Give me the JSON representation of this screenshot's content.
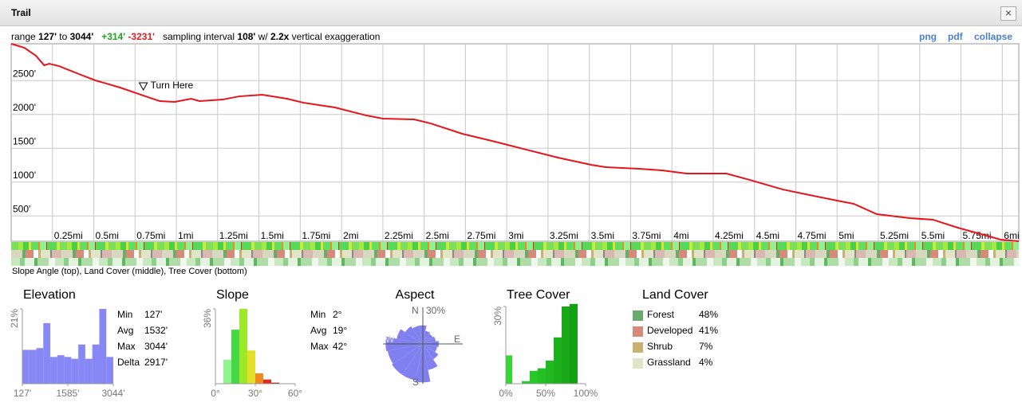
{
  "window": {
    "title": "Trail",
    "close": "×"
  },
  "summary": {
    "range_label": "range",
    "min": "127'",
    "to": "to",
    "max": "3044'",
    "gain": "+314'",
    "loss": "-3231'",
    "sampling_label": "sampling interval",
    "interval": "108'",
    "with": "w/",
    "exaggeration": "2.2x",
    "exaggeration_label": "vertical exaggeration"
  },
  "links": [
    "png",
    "pdf",
    "collapse"
  ],
  "profile": {
    "type": "line",
    "color": "#e8141b",
    "x": [
      0,
      0.08,
      0.15,
      0.2,
      0.23,
      0.29,
      0.41,
      0.51,
      0.66,
      0.8,
      0.9,
      0.99,
      1.09,
      1.14,
      1.28,
      1.38,
      1.52,
      1.67,
      1.77,
      1.96,
      2.15,
      2.25,
      2.44,
      2.54,
      2.73,
      2.93,
      3.12,
      3.31,
      3.51,
      3.6,
      3.8,
      3.94,
      4.09,
      4.23,
      4.33,
      4.47,
      4.67,
      4.81,
      5.0,
      5.1,
      5.24,
      5.44,
      5.58,
      5.73,
      5.87,
      5.99,
      6.1
    ],
    "values": [
      3044,
      2985,
      2867,
      2726,
      2750,
      2714,
      2597,
      2503,
      2397,
      2279,
      2197,
      2185,
      2232,
      2197,
      2220,
      2267,
      2291,
      2232,
      2173,
      2103,
      1985,
      1938,
      1926,
      1867,
      1715,
      1597,
      1479,
      1362,
      1256,
      1221,
      1197,
      1174,
      1127,
      1127,
      1127,
      1033,
      892,
      821,
      727,
      680,
      527,
      468,
      445,
      327,
      233,
      151,
      127
    ],
    "xlim": [
      0,
      6.1
    ],
    "ylim": [
      127,
      3044
    ],
    "yticks": [
      {
        "value": 500,
        "label": "500'"
      },
      {
        "value": 1000,
        "label": "1000'"
      },
      {
        "value": 1500,
        "label": "1500'"
      },
      {
        "value": 2000,
        "label": "2000'"
      },
      {
        "value": 2500,
        "label": "2500'"
      }
    ],
    "xticks": [
      {
        "value": 0.25,
        "label": "0.25mi"
      },
      {
        "value": 0.5,
        "label": "0.5mi"
      },
      {
        "value": 0.75,
        "label": "0.75mi"
      },
      {
        "value": 1,
        "label": "1mi"
      },
      {
        "value": 1.25,
        "label": "1.25mi"
      },
      {
        "value": 1.5,
        "label": "1.5mi"
      },
      {
        "value": 1.75,
        "label": "1.75mi"
      },
      {
        "value": 2,
        "label": "2mi"
      },
      {
        "value": 2.25,
        "label": "2.25mi"
      },
      {
        "value": 2.5,
        "label": "2.5mi"
      },
      {
        "value": 2.75,
        "label": "2.75mi"
      },
      {
        "value": 3,
        "label": "3mi"
      },
      {
        "value": 3.25,
        "label": "3.25mi"
      },
      {
        "value": 3.5,
        "label": "3.5mi"
      },
      {
        "value": 3.75,
        "label": "3.75mi"
      },
      {
        "value": 4,
        "label": "4mi"
      },
      {
        "value": 4.25,
        "label": "4.25mi"
      },
      {
        "value": 4.5,
        "label": "4.5mi"
      },
      {
        "value": 4.75,
        "label": "4.75mi"
      },
      {
        "value": 5,
        "label": "5mi"
      },
      {
        "value": 5.25,
        "label": "5.25mi"
      },
      {
        "value": 5.5,
        "label": "5.5mi"
      },
      {
        "value": 5.75,
        "label": "5.75mi"
      },
      {
        "value": 6,
        "label": "6mi"
      }
    ],
    "annotation": {
      "text": "Turn Here",
      "x": 0.8,
      "y": 2420
    }
  },
  "strip_caption": "Slope Angle (top), Land Cover (middle), Tree Cover (bottom)",
  "panels": {
    "elevation": {
      "title": "Elevation",
      "type": "histogram",
      "color": "#8787f5",
      "bins": [
        127,
        351.4,
        575.8,
        800.2,
        1024.6,
        1249,
        1473.4,
        1697.8,
        1922.2,
        2146.6,
        2371,
        2595.4,
        2819.8,
        3044
      ],
      "counts": [
        9.5,
        9.5,
        10,
        17,
        7.5,
        8,
        7.5,
        7,
        11,
        7,
        11,
        21,
        7.5
      ],
      "xlim": [
        127,
        3044
      ],
      "ylim": [
        0,
        21
      ],
      "yticks": [
        {
          "value": 21,
          "label": "21%"
        }
      ],
      "xticks": [
        {
          "value": 127,
          "label": "127'"
        },
        {
          "value": 1585,
          "label": "1585'"
        },
        {
          "value": 3044,
          "label": "3044'"
        }
      ],
      "stats": [
        {
          "label": "Min",
          "value": "127'"
        },
        {
          "label": "Avg",
          "value": "1532'"
        },
        {
          "label": "Max",
          "value": "3044'"
        },
        {
          "label": "Delta",
          "value": "2917'"
        }
      ]
    },
    "slope": {
      "title": "Slope",
      "type": "histogram",
      "bins": [
        6,
        12,
        18,
        24,
        30,
        36,
        42,
        48
      ],
      "counts": [
        11.5,
        26,
        36,
        16,
        5,
        2,
        0.5
      ],
      "colors": [
        "#8ef58e",
        "#44d844",
        "#9ee82a",
        "#e4e02a",
        "#f08a20",
        "#e02a1a",
        "#a00010"
      ],
      "xlim": [
        0,
        60
      ],
      "ylim": [
        0,
        36
      ],
      "yticks": [
        {
          "value": 36,
          "label": "36%"
        }
      ],
      "xticks": [
        {
          "value": 0,
          "label": "0°"
        },
        {
          "value": 30,
          "label": "30°"
        },
        {
          "value": 60,
          "label": "60°"
        }
      ],
      "stats": [
        {
          "label": "Min",
          "value": "2°"
        },
        {
          "label": "Avg",
          "value": "19°"
        },
        {
          "label": "Max",
          "value": "42°"
        }
      ]
    },
    "aspect": {
      "title": "Aspect",
      "type": "rose",
      "color": "#8080f0",
      "values": [
        14,
        10,
        9,
        10,
        12,
        11,
        14,
        20,
        29,
        28,
        28,
        27,
        28,
        20,
        16,
        14
      ],
      "rlim": [
        0,
        30
      ],
      "rtick": {
        "value": 30,
        "label": "30%"
      },
      "directions": {
        "N": "N",
        "E": "E",
        "S": "S",
        "W": "W"
      }
    },
    "tree": {
      "title": "Tree Cover",
      "type": "histogram",
      "bins": [
        0,
        8,
        20,
        30,
        40,
        50,
        60,
        70,
        80,
        90,
        100
      ],
      "counts": [
        11,
        0,
        1,
        5,
        6,
        9,
        18,
        30,
        31,
        0
      ],
      "colors": [
        "#30d830",
        "#30d830",
        "#28c828",
        "#28c828",
        "#22c022",
        "#20b820",
        "#1cb01c",
        "#18a818",
        "#14a014",
        "#14a014"
      ],
      "xlim": [
        0,
        100
      ],
      "ylim": [
        0,
        30
      ],
      "yticks": [
        {
          "value": 30,
          "label": "30%"
        }
      ],
      "xticks": [
        {
          "value": 0,
          "label": "0%"
        },
        {
          "value": 50,
          "label": "50%"
        },
        {
          "value": 100,
          "label": "100%"
        }
      ]
    },
    "land": {
      "title": "Land Cover",
      "items": [
        {
          "name": "Forest",
          "color": "#6aaa6a",
          "value": 48,
          "value_label": "48%"
        },
        {
          "name": "Developed",
          "color": "#d58a7a",
          "value": 41,
          "value_label": "41%"
        },
        {
          "name": "Shrub",
          "color": "#c8b070",
          "value": 7,
          "value_label": "7%"
        },
        {
          "name": "Grassland",
          "color": "#e2e4c8",
          "value": 4,
          "value_label": "4%"
        }
      ]
    }
  }
}
